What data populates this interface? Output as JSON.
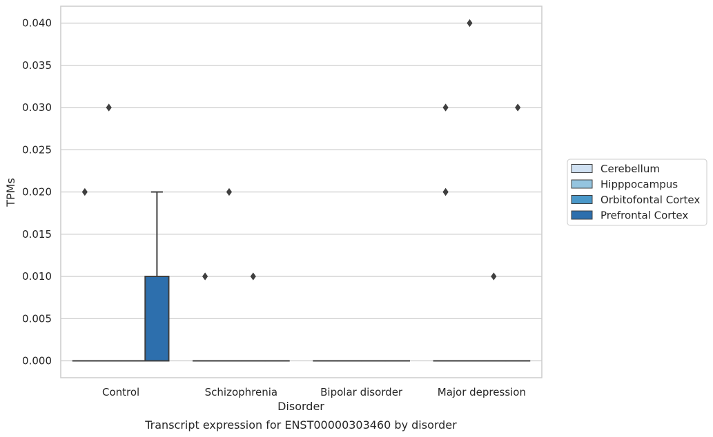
{
  "chart_data": {
    "type": "box",
    "xlabel": "Disorder",
    "ylabel": "TPMs",
    "caption": "Transcript expression for ENST00000303460 by disorder",
    "ylim": [
      -0.002,
      0.042
    ],
    "yticks": [
      "0.000",
      "0.005",
      "0.010",
      "0.015",
      "0.020",
      "0.025",
      "0.030",
      "0.035",
      "0.040"
    ],
    "grid": "horizontal",
    "legend_position": "right",
    "categories": [
      "Control",
      "Schizophrenia",
      "Bipolar disorder",
      "Major depression"
    ],
    "series": [
      {
        "name": "Cerebellum",
        "color": "#d0e1f2",
        "boxes": [
          {
            "q1": 0,
            "median": 0,
            "q3": 0,
            "whisker_low": 0,
            "whisker_high": 0,
            "outliers": [
              0.02
            ]
          },
          {
            "q1": 0,
            "median": 0,
            "q3": 0,
            "whisker_low": 0,
            "whisker_high": 0,
            "outliers": [
              0.01
            ]
          },
          {
            "q1": 0,
            "median": 0,
            "q3": 0,
            "whisker_low": 0,
            "whisker_high": 0,
            "outliers": []
          },
          {
            "q1": 0,
            "median": 0,
            "q3": 0,
            "whisker_low": 0,
            "whisker_high": 0,
            "outliers": [
              0.02,
              0.02,
              0.03
            ]
          }
        ]
      },
      {
        "name": "Hipppocampus",
        "color": "#94c4df",
        "boxes": [
          {
            "q1": 0,
            "median": 0,
            "q3": 0,
            "whisker_low": 0,
            "whisker_high": 0,
            "outliers": [
              0.03
            ]
          },
          {
            "q1": 0,
            "median": 0,
            "q3": 0,
            "whisker_low": 0,
            "whisker_high": 0,
            "outliers": [
              0.02
            ]
          },
          {
            "q1": 0,
            "median": 0,
            "q3": 0,
            "whisker_low": 0,
            "whisker_high": 0,
            "outliers": []
          },
          {
            "q1": 0,
            "median": 0,
            "q3": 0,
            "whisker_low": 0,
            "whisker_high": 0,
            "outliers": [
              0.04
            ]
          }
        ]
      },
      {
        "name": "Orbitofontal Cortex",
        "color": "#4a98c9",
        "boxes": [
          {
            "q1": 0,
            "median": 0,
            "q3": 0,
            "whisker_low": 0,
            "whisker_high": 0,
            "outliers": []
          },
          {
            "q1": 0,
            "median": 0,
            "q3": 0,
            "whisker_low": 0,
            "whisker_high": 0,
            "outliers": [
              0.01
            ]
          },
          {
            "q1": 0,
            "median": 0,
            "q3": 0,
            "whisker_low": 0,
            "whisker_high": 0,
            "outliers": []
          },
          {
            "q1": 0,
            "median": 0,
            "q3": 0,
            "whisker_low": 0,
            "whisker_high": 0,
            "outliers": [
              0.01
            ]
          }
        ]
      },
      {
        "name": "Prefrontal Cortex",
        "color": "#2d6fad",
        "boxes": [
          {
            "q1": 0,
            "median": 0,
            "q3": 0.01,
            "whisker_low": 0,
            "whisker_high": 0.02,
            "outliers": []
          },
          {
            "q1": 0,
            "median": 0,
            "q3": 0,
            "whisker_low": 0,
            "whisker_high": 0,
            "outliers": []
          },
          {
            "q1": 0,
            "median": 0,
            "q3": 0,
            "whisker_low": 0,
            "whisker_high": 0,
            "outliers": []
          },
          {
            "q1": 0,
            "median": 0,
            "q3": 0,
            "whisker_low": 0,
            "whisker_high": 0,
            "outliers": [
              0.03
            ]
          }
        ]
      }
    ]
  }
}
